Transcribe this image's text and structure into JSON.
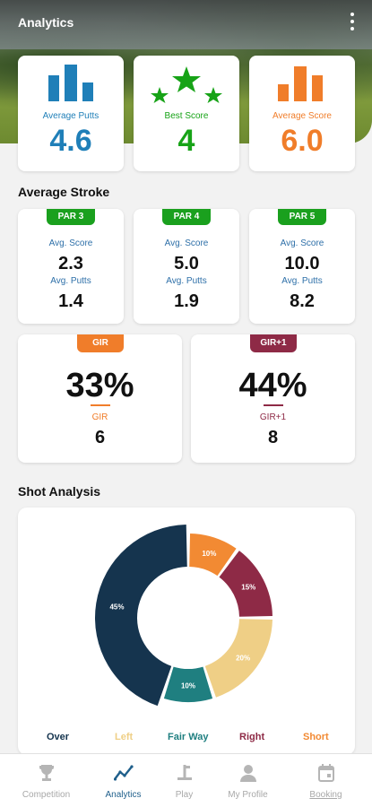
{
  "header": {
    "title": "Analytics"
  },
  "stats": [
    {
      "label": "Average Putts",
      "value": "4.6",
      "color": "#1f7fb8",
      "icon": "bar-chart-icon"
    },
    {
      "label": "Best Score",
      "value": "4",
      "color": "#17a317",
      "icon": "stars-icon"
    },
    {
      "label": "Average Score",
      "value": "6.0",
      "color": "#f07d2a",
      "icon": "bar-chart-icon"
    }
  ],
  "average_stroke": {
    "title": "Average Stroke",
    "score_label": "Avg. Score",
    "putts_label": "Avg. Putts",
    "pars": [
      {
        "badge": "PAR 3",
        "score": "2.3",
        "putts": "1.4"
      },
      {
        "badge": "PAR 4",
        "score": "5.0",
        "putts": "1.9"
      },
      {
        "badge": "PAR 5",
        "score": "10.0",
        "putts": "8.2"
      }
    ]
  },
  "gir": [
    {
      "badge": "GIR",
      "percent": "33%",
      "label": "GIR",
      "value": "6",
      "color": "#f07d2a"
    },
    {
      "badge": "GIR+1",
      "percent": "44%",
      "label": "GIR+1",
      "value": "8",
      "color": "#8e2a46"
    }
  ],
  "shot_analysis": {
    "title": "Shot Analysis",
    "legend": [
      {
        "label": "Over",
        "color": "#15344e"
      },
      {
        "label": "Left",
        "color": "#efcf86"
      },
      {
        "label": "Fair Way",
        "color": "#1f7f80"
      },
      {
        "label": "Right",
        "color": "#8e2a46"
      },
      {
        "label": "Short",
        "color": "#f28a33"
      }
    ]
  },
  "chart_data": {
    "type": "pie",
    "categories": [
      "Short",
      "Right",
      "Left",
      "Fair Way",
      "Over"
    ],
    "values": [
      10,
      15,
      20,
      10,
      45
    ],
    "labels": [
      "10%",
      "15%",
      "20%",
      "10%",
      "45%"
    ],
    "colors": [
      "#f28a33",
      "#8e2a46",
      "#efcf86",
      "#1f7f80",
      "#15344e"
    ]
  },
  "nav": [
    {
      "label": "Competition",
      "icon": "trophy-icon",
      "active": false
    },
    {
      "label": "Analytics",
      "icon": "analytics-icon",
      "active": true
    },
    {
      "label": "Play",
      "icon": "golf-tee-icon",
      "active": false
    },
    {
      "label": "My Profile",
      "icon": "person-icon",
      "active": false
    },
    {
      "label": "Booking",
      "icon": "calendar-icon",
      "active": false
    }
  ]
}
